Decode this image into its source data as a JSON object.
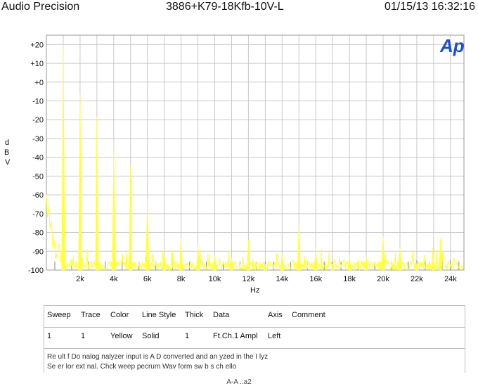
{
  "header": {
    "left": "Audio Precision",
    "center": "3886+K79-18Kfb-10V-L",
    "right": "01/15/13 16:32:16"
  },
  "logo_text": "Ap",
  "colors": {
    "trace": "#ffff33",
    "grid": "#c9c9c9",
    "logo": "#1a4fd8"
  },
  "chart_data": {
    "type": "line",
    "title": "",
    "xlabel": "Hz",
    "ylabel": "d B V",
    "xlim": [
      0,
      24800
    ],
    "ylim": [
      -100,
      25
    ],
    "x_ticks": [
      2000,
      4000,
      6000,
      8000,
      10000,
      12000,
      14000,
      16000,
      18000,
      20000,
      22000,
      24000
    ],
    "x_tick_labels": [
      "2k",
      "4k",
      "6k",
      "8k",
      "10k",
      "12k",
      "14k",
      "16k",
      "18k",
      "20k",
      "22k",
      "24k"
    ],
    "y_ticks": [
      20,
      10,
      0,
      -10,
      -20,
      -30,
      -40,
      -50,
      -60,
      -70,
      -80,
      -90,
      -100
    ],
    "y_tick_labels": [
      "+20",
      "+10",
      "+0",
      "-10",
      "-20",
      "-30",
      "-40",
      "-50",
      "-60",
      "-70",
      "-80",
      "-90",
      "-100"
    ],
    "grid": true,
    "series": [
      {
        "name": "Ft.Ch.1 Ampl",
        "color": "#ffff33",
        "peaks": [
          {
            "x": 1000,
            "y": 20
          },
          {
            "x": 2000,
            "y": -6
          },
          {
            "x": 3000,
            "y": -18
          },
          {
            "x": 4000,
            "y": -32
          },
          {
            "x": 5000,
            "y": -44
          },
          {
            "x": 6000,
            "y": -62
          },
          {
            "x": 7000,
            "y": -92
          },
          {
            "x": 8000,
            "y": -83
          },
          {
            "x": 9000,
            "y": -86
          },
          {
            "x": 10000,
            "y": -92
          },
          {
            "x": 11000,
            "y": -93
          },
          {
            "x": 12000,
            "y": -84
          },
          {
            "x": 13000,
            "y": -97
          },
          {
            "x": 14000,
            "y": -91
          },
          {
            "x": 15000,
            "y": -76
          },
          {
            "x": 16000,
            "y": -88
          },
          {
            "x": 17000,
            "y": -97
          },
          {
            "x": 18000,
            "y": -92
          },
          {
            "x": 19000,
            "y": -93
          },
          {
            "x": 20000,
            "y": -82
          },
          {
            "x": 21000,
            "y": -88
          },
          {
            "x": 22000,
            "y": -97
          },
          {
            "x": 23000,
            "y": -94
          },
          {
            "x": 23400,
            "y": -83
          }
        ]
      }
    ]
  },
  "legend": {
    "headers": [
      "Sweep",
      "Trace",
      "Color",
      "Line Style",
      "Thick",
      "Data",
      "Axis",
      "Comment"
    ],
    "rows": [
      [
        "1",
        "1",
        "Yellow",
        "Solid",
        "1",
        "Ft.Ch.1 Ampl",
        "Left",
        ""
      ]
    ]
  },
  "notes": {
    "line1": "Re ult f Do   nalog  nalyzer input is A D converted and an  yzed in   the    I       lyz",
    "line2": "Se er   lor ext   nal. Chck  weep   pecrum  Wav form   sw    b     s  ch          ello"
  },
  "footer": "A-A    ..a2"
}
